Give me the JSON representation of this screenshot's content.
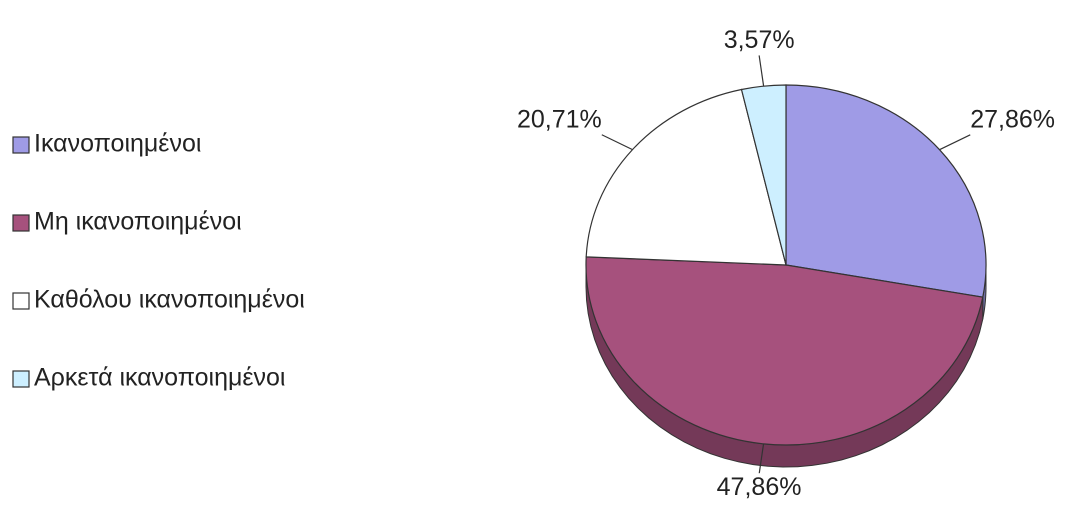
{
  "chart_data": {
    "type": "pie",
    "categories": [
      "Ικανοποιημένοι",
      "Μη ικανοποιημένοι",
      "Καθόλου ικανοποιημένοι",
      "Αρκετά ικανοποιημένοι"
    ],
    "values": [
      27.86,
      47.86,
      20.71,
      3.57
    ],
    "value_labels": [
      "27,86%",
      "47,86%",
      "20,71%",
      "3,57%"
    ],
    "colors": [
      "#9f9be6",
      "#a6517d",
      "#ffffff",
      "#cdefff"
    ],
    "legend": "left"
  }
}
